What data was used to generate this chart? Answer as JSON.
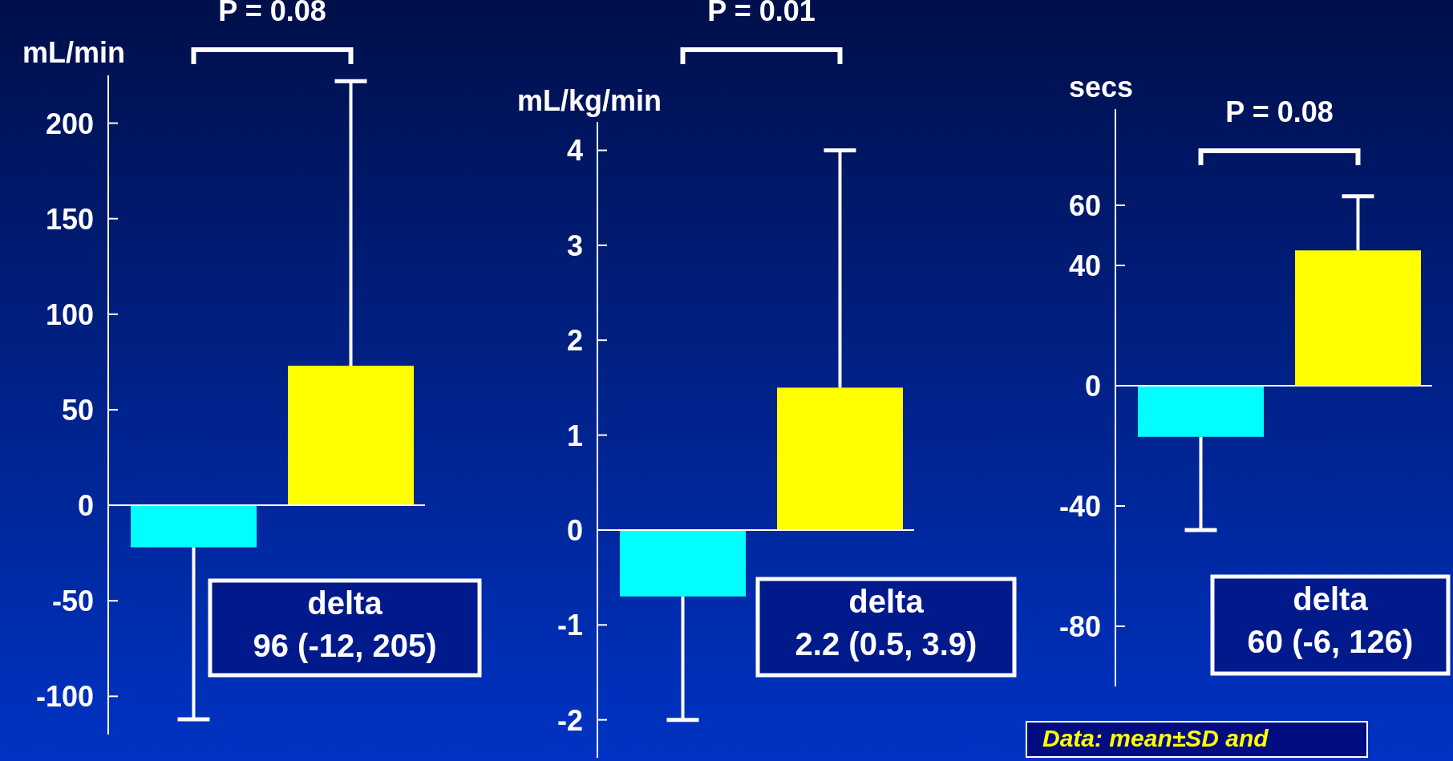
{
  "chart_data": [
    {
      "type": "bar",
      "ylabel": "mL/min",
      "categories": [
        null,
        null
      ],
      "values": [
        -22,
        73
      ],
      "colors": [
        "#00ffff",
        "#ffff00"
      ],
      "errors": [
        [
          -112,
          -22
        ],
        [
          73,
          222
        ]
      ],
      "ylim": [
        -120,
        225
      ],
      "yticks": [
        -100,
        -50,
        0,
        50,
        100,
        150,
        200
      ],
      "annotations": [
        "P = 0.08",
        "delta",
        "96 (-12, 205)"
      ]
    },
    {
      "type": "bar",
      "ylabel": "mL/kg/min",
      "categories": [
        null,
        null
      ],
      "values": [
        -0.7,
        1.5
      ],
      "colors": [
        "#00ffff",
        "#ffff00"
      ],
      "errors": [
        [
          -2.0,
          -0.7
        ],
        [
          1.5,
          4.0
        ]
      ],
      "ylim": [
        -2.4,
        4.3
      ],
      "yticks": [
        -2,
        -1,
        0,
        1,
        2,
        3,
        4
      ],
      "annotations": [
        "P = 0.01",
        "delta",
        "2.2 (0.5, 3.9)"
      ]
    },
    {
      "type": "bar",
      "ylabel": "secs",
      "categories": [
        null,
        null
      ],
      "values": [
        -17,
        45
      ],
      "colors": [
        "#00ffff",
        "#ffff00"
      ],
      "errors": [
        [
          -48,
          -17
        ],
        [
          45,
          63
        ]
      ],
      "ylim": [
        -100,
        92
      ],
      "yticks": [
        -80,
        -40,
        0,
        40,
        60
      ],
      "annotations": [
        "P = 0.08",
        "delta",
        "60 (-6, 126)",
        "Data: mean±SD and"
      ]
    }
  ]
}
